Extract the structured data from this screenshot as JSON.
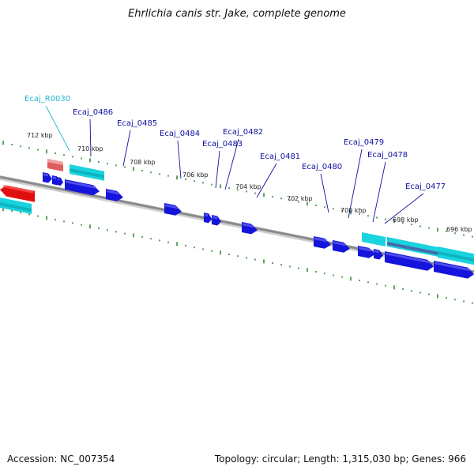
{
  "title": "Ehrlichia canis str. Jake, complete genome",
  "footer": {
    "accession": "Accession: NC_007354",
    "summary": "Topology: circular; Length: 1,315,030 bp; Genes: 966"
  },
  "colors": {
    "backbone": "#8a8a8a",
    "tick": "#1a7a1a",
    "gene_fwd": "#1414dc",
    "gene_rev": "#0a0ab4",
    "rna": "#19d3de",
    "rna_dark": "#0aa8b4",
    "pseudo": "#e05c5c",
    "highlight": "#e01010",
    "label_gene": "#1010a0",
    "label_rna": "#22b5d0"
  },
  "scale": {
    "tick_labels": [
      "712 kbp",
      "710 kbp",
      "708 kbp",
      "706 kbp",
      "704 kbp",
      "702 kbp",
      "700 kbp",
      "698 kbp",
      "696 kbp"
    ]
  },
  "gene_labels": [
    {
      "text": "Ecaj_R0030",
      "kind": "rna"
    },
    {
      "text": "Ecaj_0486",
      "kind": "gene"
    },
    {
      "text": "Ecaj_0485",
      "kind": "gene"
    },
    {
      "text": "Ecaj_0484",
      "kind": "gene"
    },
    {
      "text": "Ecaj_0483",
      "kind": "gene"
    },
    {
      "text": "Ecaj_0482",
      "kind": "gene"
    },
    {
      "text": "Ecaj_0481",
      "kind": "gene"
    },
    {
      "text": "Ecaj_0480",
      "kind": "gene"
    },
    {
      "text": "Ecaj_0479",
      "kind": "gene"
    },
    {
      "text": "Ecaj_0478",
      "kind": "gene"
    },
    {
      "text": "Ecaj_0477",
      "kind": "gene"
    }
  ]
}
